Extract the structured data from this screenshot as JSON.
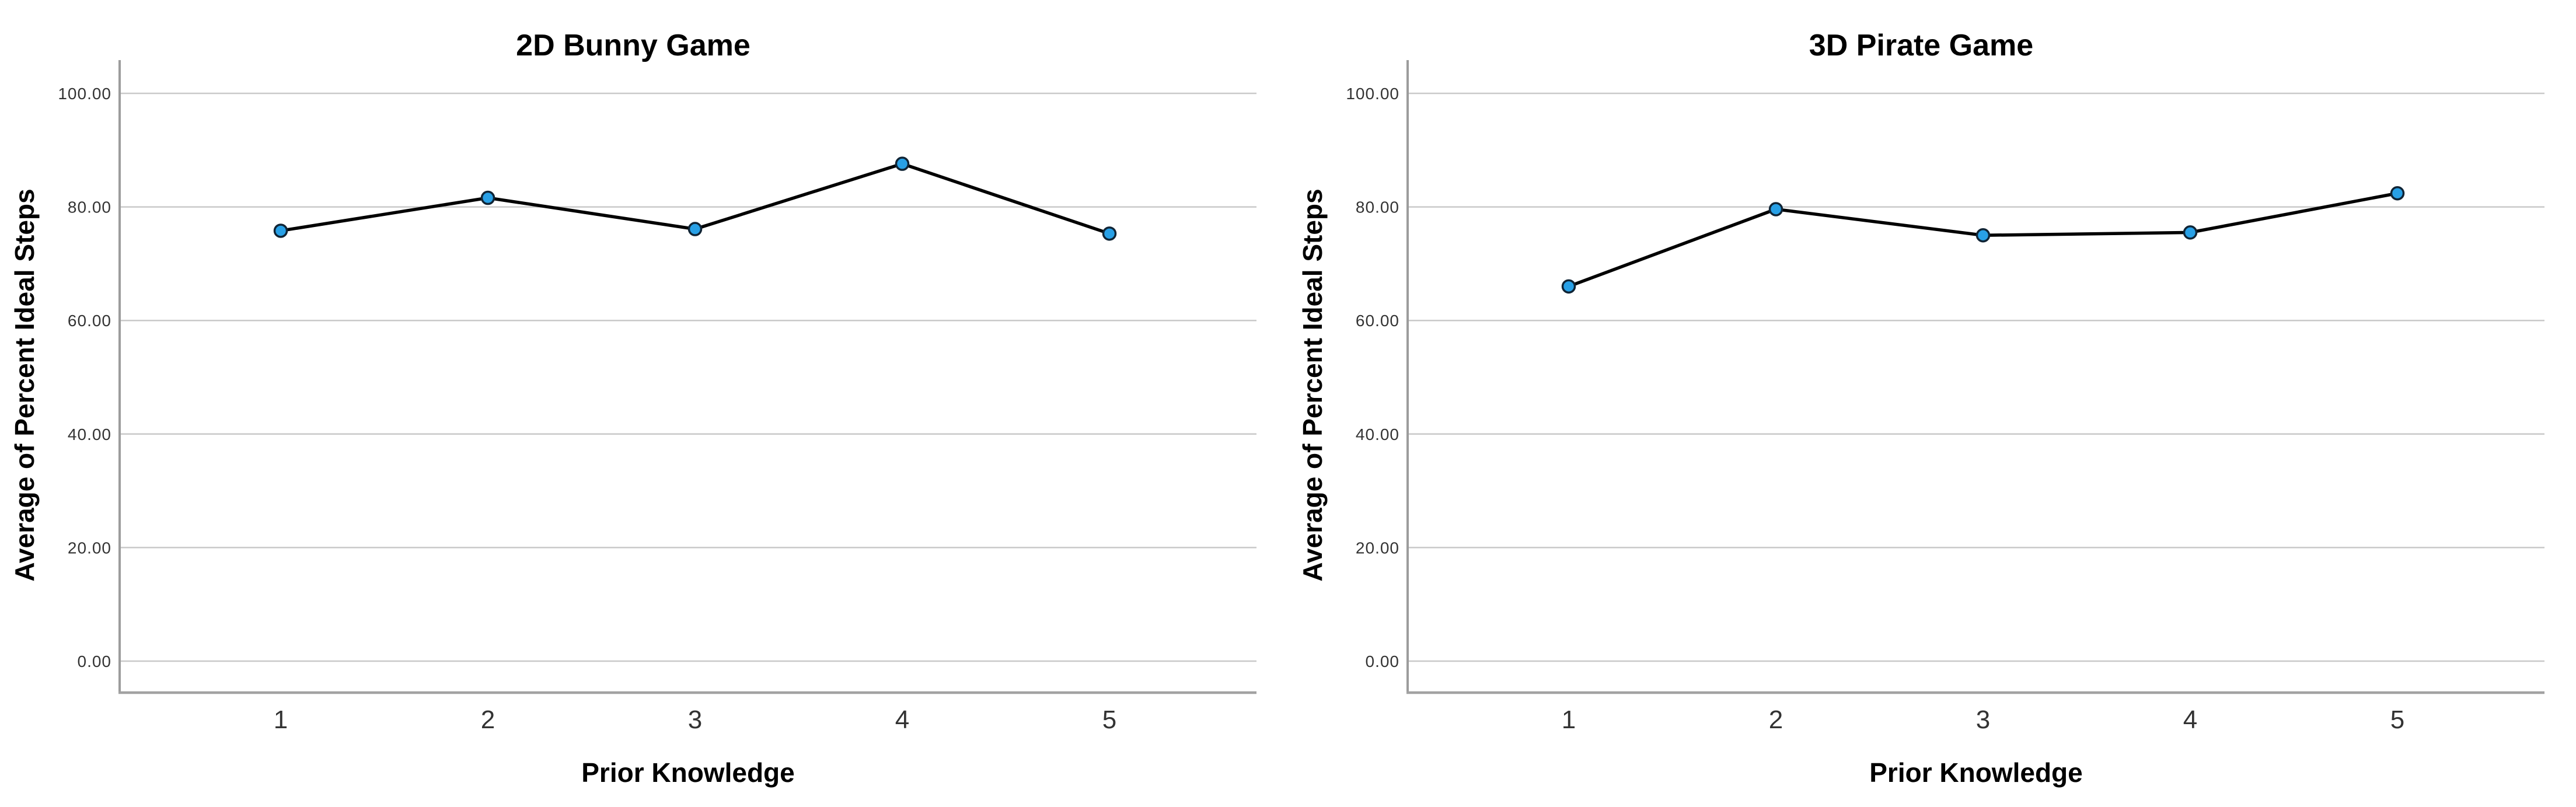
{
  "page": {
    "background": "#ffffff"
  },
  "styles": {
    "gridline_color": "#c9c9c9",
    "y_axis_color": "#9c9c9c",
    "x_axis_color": "#a2a2a2",
    "line_color": "#000000",
    "marker_fill": "#28a0e6",
    "marker_stroke": "#102435",
    "tick_text_color": "#333333",
    "title_text_color": "#000000"
  },
  "chart_data": [
    {
      "type": "line",
      "title": "2D Bunny Game",
      "xlabel": "Prior Knowledge",
      "ylabel": "Average of Percent Ideal Steps",
      "categories": [
        "1",
        "2",
        "3",
        "4",
        "5"
      ],
      "values": [
        75.8,
        81.6,
        76.1,
        87.6,
        75.3
      ],
      "ylim": [
        0,
        100
      ],
      "yticks": [
        0,
        20,
        40,
        60,
        80,
        100
      ],
      "ytick_labels": [
        "0.00",
        "20.00",
        "40.00",
        "60.00",
        "80.00",
        "100.00"
      ],
      "grid": true,
      "legend_position": "none"
    },
    {
      "type": "line",
      "title": "3D Pirate Game",
      "xlabel": "Prior Knowledge",
      "ylabel": "Average of Percent Ideal Steps",
      "categories": [
        "1",
        "2",
        "3",
        "4",
        "5"
      ],
      "values": [
        66.0,
        79.6,
        75.0,
        75.5,
        82.4
      ],
      "ylim": [
        0,
        100
      ],
      "yticks": [
        0,
        20,
        40,
        60,
        80,
        100
      ],
      "ytick_labels": [
        "0.00",
        "20.00",
        "40.00",
        "60.00",
        "80.00",
        "100.00"
      ],
      "grid": true,
      "legend_position": "none"
    }
  ]
}
